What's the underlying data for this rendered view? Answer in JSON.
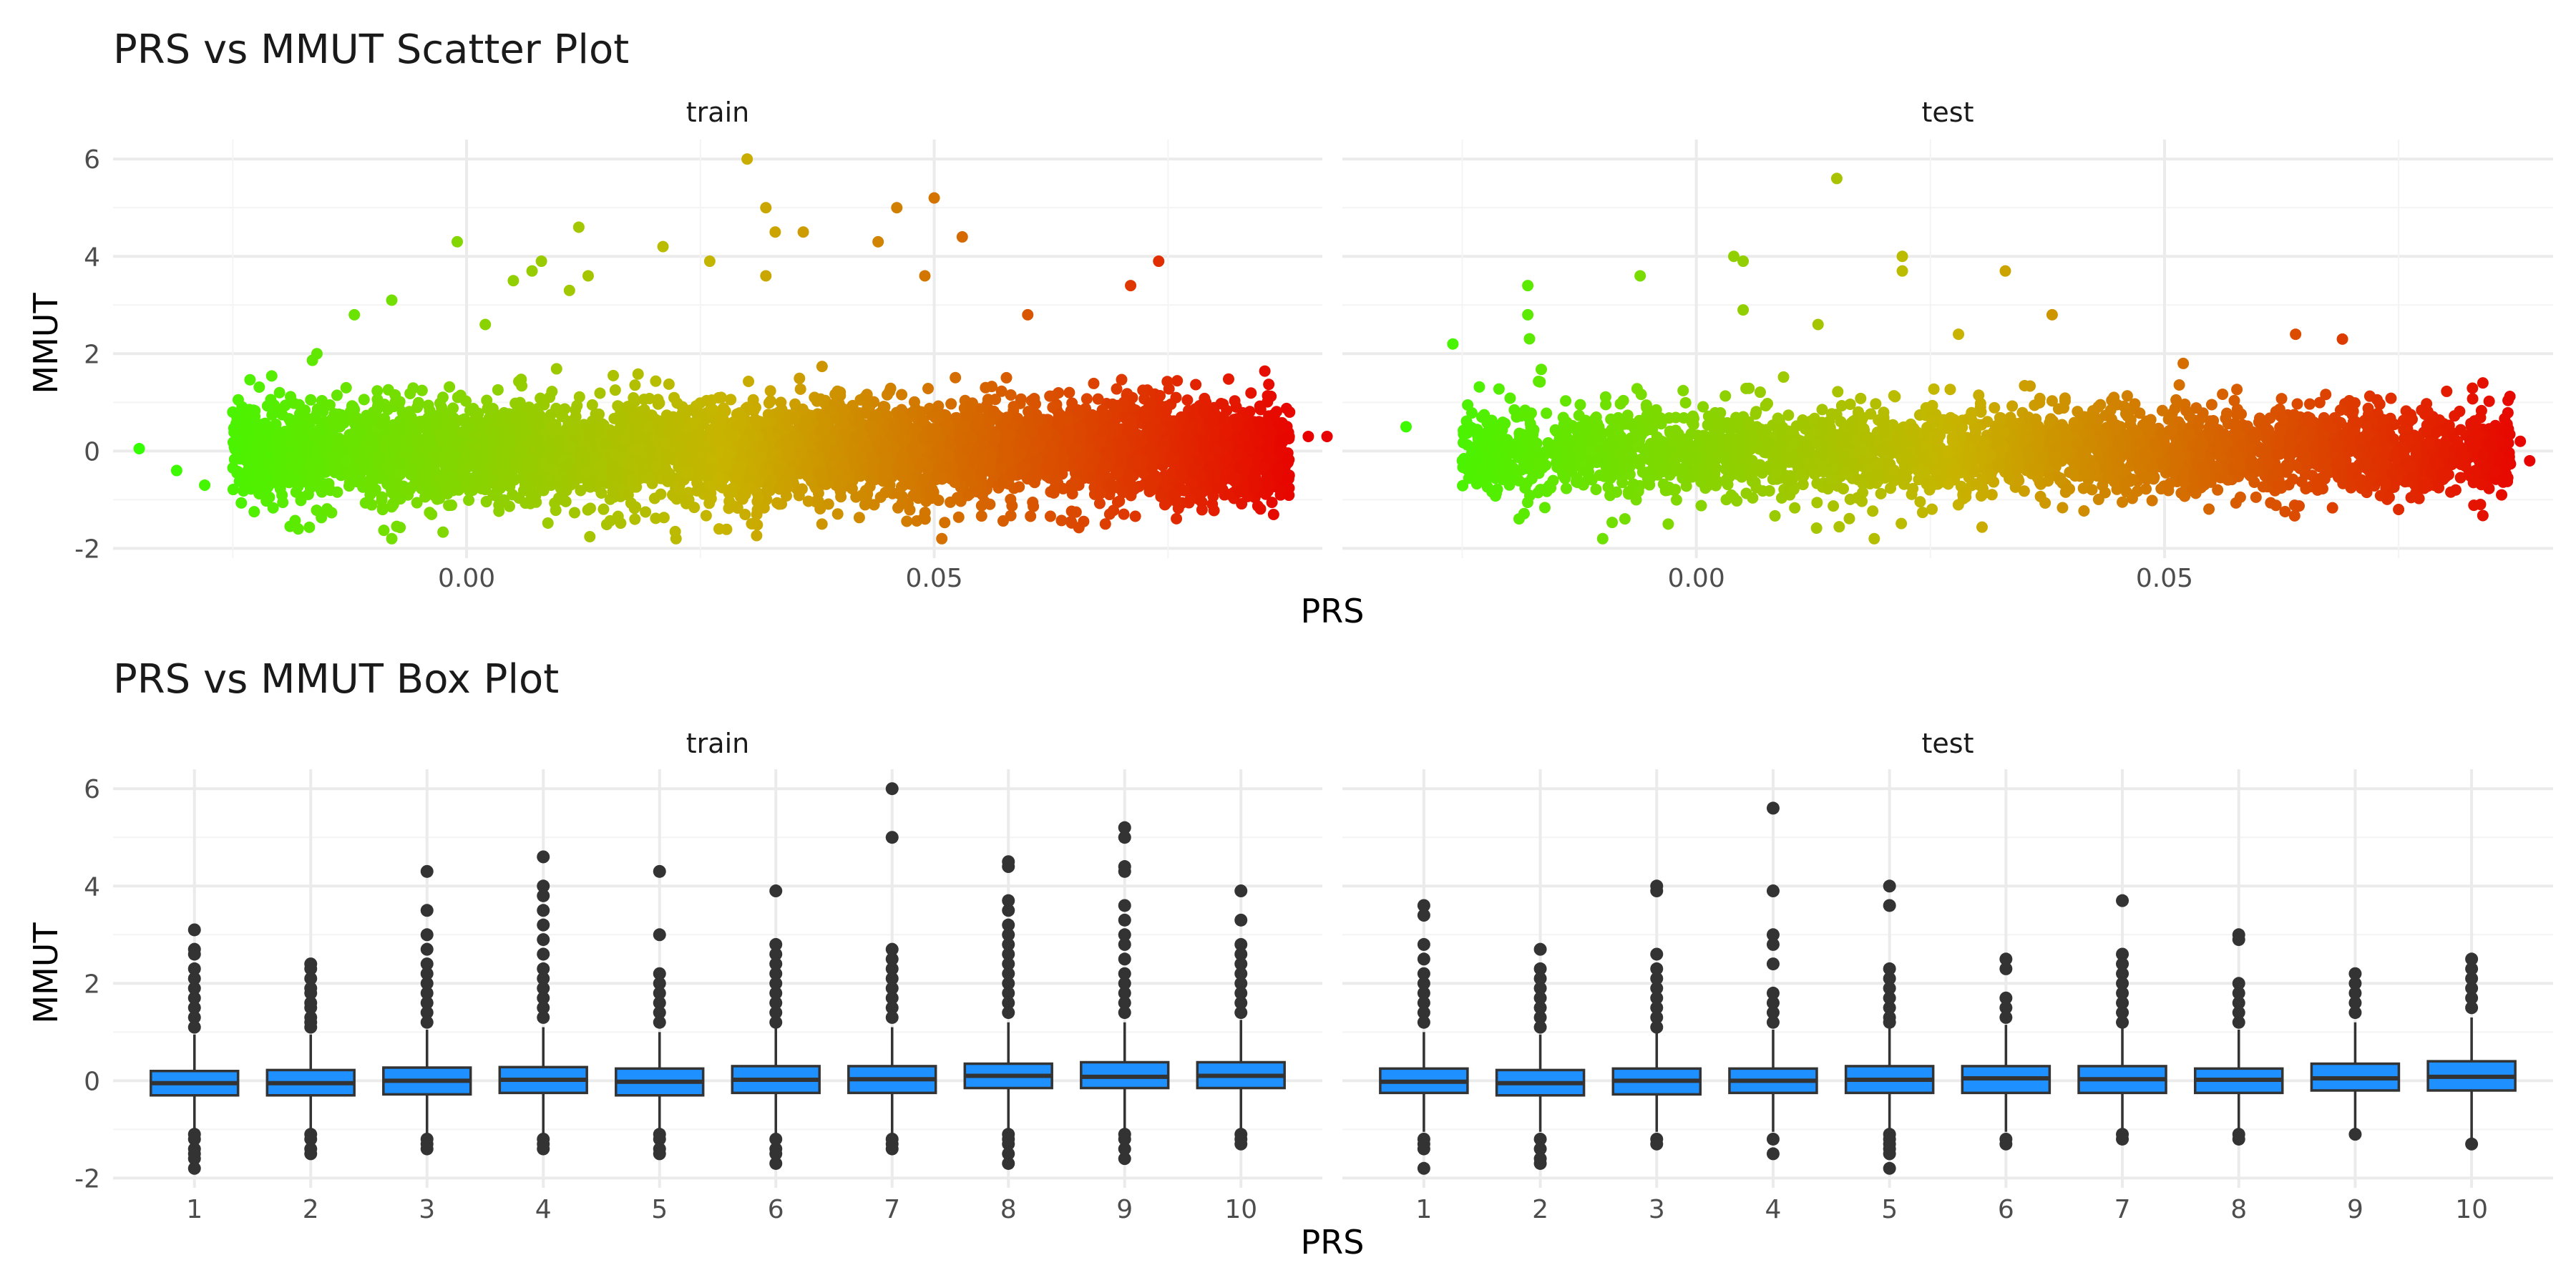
{
  "chart_data": [
    {
      "type": "scatter",
      "title": "PRS vs MMUT Scatter Plot",
      "xlabel": "PRS",
      "ylabel": "MMUT",
      "xlim": [
        -0.0378,
        0.0915
      ],
      "ylim": [
        -2.2,
        6.4
      ],
      "x_ticks": [
        0.0,
        0.05
      ],
      "x_tick_labels": [
        "0.00",
        "0.05"
      ],
      "y_ticks": [
        -2,
        0,
        2,
        4,
        6
      ],
      "y_tick_labels": [
        "-2",
        "0",
        "2",
        "4",
        "6"
      ],
      "color_scale": {
        "low": "#33ff00",
        "mid": "#c8b400",
        "high": "#e80000",
        "note_range": [
          -0.035,
          0.09
        ]
      },
      "grid": true,
      "legend": "none",
      "panels": [
        {
          "name": "train",
          "bulk": {
            "x_range": [
              -0.025,
              0.088
            ],
            "y_sd": 0.5
          },
          "points": [
            {
              "x": -0.035,
              "y": 0.05
            },
            {
              "x": -0.031,
              "y": -0.4
            },
            {
              "x": -0.028,
              "y": -0.7
            },
            {
              "x": -0.025,
              "y": 0.8
            },
            {
              "x": -0.02,
              "y": 1.2
            },
            {
              "x": -0.018,
              "y": -1.6
            },
            {
              "x": -0.016,
              "y": 2.0
            },
            {
              "x": -0.012,
              "y": 2.8
            },
            {
              "x": -0.008,
              "y": -1.8
            },
            {
              "x": -0.008,
              "y": 3.1
            },
            {
              "x": -0.001,
              "y": 4.3
            },
            {
              "x": 0.002,
              "y": 2.6
            },
            {
              "x": 0.005,
              "y": 3.5
            },
            {
              "x": 0.007,
              "y": 3.7
            },
            {
              "x": 0.008,
              "y": 3.9
            },
            {
              "x": 0.011,
              "y": 3.3
            },
            {
              "x": 0.012,
              "y": 4.6
            },
            {
              "x": 0.013,
              "y": 3.6
            },
            {
              "x": 0.018,
              "y": -1.4
            },
            {
              "x": 0.021,
              "y": 4.2
            },
            {
              "x": 0.026,
              "y": 3.9
            },
            {
              "x": 0.027,
              "y": -1.6
            },
            {
              "x": 0.03,
              "y": 6.0
            },
            {
              "x": 0.032,
              "y": 5.0
            },
            {
              "x": 0.032,
              "y": 3.6
            },
            {
              "x": 0.033,
              "y": 4.5
            },
            {
              "x": 0.036,
              "y": 4.5
            },
            {
              "x": 0.038,
              "y": -1.5
            },
            {
              "x": 0.044,
              "y": 4.3
            },
            {
              "x": 0.046,
              "y": 5.0
            },
            {
              "x": 0.05,
              "y": 5.2
            },
            {
              "x": 0.049,
              "y": 3.6
            },
            {
              "x": 0.053,
              "y": 4.4
            },
            {
              "x": 0.06,
              "y": 2.8
            },
            {
              "x": 0.071,
              "y": 3.4
            },
            {
              "x": 0.074,
              "y": 3.9
            },
            {
              "x": 0.087,
              "y": -0.8
            },
            {
              "x": 0.088,
              "y": 0.8
            },
            {
              "x": 0.09,
              "y": 0.3
            },
            {
              "x": 0.092,
              "y": 0.3
            },
            {
              "x": 0.086,
              "y": 0.4
            }
          ]
        },
        {
          "name": "test",
          "bulk": {
            "x_range": [
              -0.025,
              0.087
            ],
            "y_sd": 0.45
          },
          "points": [
            {
              "x": -0.031,
              "y": 0.5
            },
            {
              "x": -0.026,
              "y": 2.2
            },
            {
              "x": -0.018,
              "y": 3.4
            },
            {
              "x": -0.018,
              "y": 2.8
            },
            {
              "x": -0.006,
              "y": 3.6
            },
            {
              "x": -0.003,
              "y": -1.5
            },
            {
              "x": -0.01,
              "y": -1.8
            },
            {
              "x": 0.004,
              "y": 4.0
            },
            {
              "x": 0.005,
              "y": 3.9
            },
            {
              "x": 0.005,
              "y": 2.9
            },
            {
              "x": 0.013,
              "y": 2.6
            },
            {
              "x": 0.015,
              "y": 5.6
            },
            {
              "x": 0.019,
              "y": -1.8
            },
            {
              "x": 0.022,
              "y": 4.0
            },
            {
              "x": 0.022,
              "y": 3.7
            },
            {
              "x": 0.028,
              "y": 2.4
            },
            {
              "x": 0.033,
              "y": 3.7
            },
            {
              "x": 0.038,
              "y": 2.8
            },
            {
              "x": 0.052,
              "y": 1.8
            },
            {
              "x": 0.064,
              "y": 2.4
            },
            {
              "x": 0.069,
              "y": 2.3
            },
            {
              "x": 0.075,
              "y": -1.2
            },
            {
              "x": 0.08,
              "y": -0.5
            },
            {
              "x": 0.084,
              "y": 1.4
            },
            {
              "x": 0.086,
              "y": -0.9
            },
            {
              "x": 0.088,
              "y": 0.2
            },
            {
              "x": 0.089,
              "y": -0.2
            }
          ]
        }
      ]
    },
    {
      "type": "box",
      "title": "PRS vs MMUT Box Plot",
      "xlabel": "PRS",
      "ylabel": "MMUT",
      "categories": [
        "1",
        "2",
        "3",
        "4",
        "5",
        "6",
        "7",
        "8",
        "9",
        "10"
      ],
      "ylim": [
        -2.2,
        6.4
      ],
      "y_ticks": [
        -2,
        0,
        2,
        4,
        6
      ],
      "y_tick_labels": [
        "-2",
        "0",
        "2",
        "4",
        "6"
      ],
      "box_color": "#1e90ff",
      "grid": true,
      "legend": "none",
      "panels": [
        {
          "name": "train",
          "boxes": [
            {
              "q1": -0.3,
              "median": -0.05,
              "q3": 0.2,
              "whisker_low": -1.05,
              "whisker_high": 0.95,
              "outliers_high": [
                3.1,
                2.7,
                2.6,
                2.3,
                2.1,
                1.9,
                1.7,
                1.5,
                1.3,
                1.1
              ],
              "outliers_low": [
                -1.1,
                -1.2,
                -1.4,
                -1.5,
                -1.6,
                -1.8
              ]
            },
            {
              "q1": -0.3,
              "median": -0.05,
              "q3": 0.22,
              "whisker_low": -1.05,
              "whisker_high": 0.95,
              "outliers_high": [
                2.4,
                2.3,
                2.1,
                1.9,
                1.8,
                1.6,
                1.5,
                1.3,
                1.2,
                1.1
              ],
              "outliers_low": [
                -1.1,
                -1.2,
                -1.4,
                -1.5
              ]
            },
            {
              "q1": -0.28,
              "median": 0.0,
              "q3": 0.27,
              "whisker_low": -1.1,
              "whisker_high": 1.05,
              "outliers_high": [
                4.3,
                3.5,
                3.0,
                2.7,
                2.4,
                2.2,
                2.0,
                1.8,
                1.6,
                1.4,
                1.2
              ],
              "outliers_low": [
                -1.2,
                -1.3,
                -1.4
              ]
            },
            {
              "q1": -0.25,
              "median": 0.02,
              "q3": 0.28,
              "whisker_low": -1.1,
              "whisker_high": 1.1,
              "outliers_high": [
                4.6,
                4.0,
                3.8,
                3.5,
                3.2,
                2.9,
                2.6,
                2.3,
                2.1,
                1.9,
                1.7,
                1.5,
                1.3
              ],
              "outliers_low": [
                -1.2,
                -1.3,
                -1.4
              ]
            },
            {
              "q1": -0.3,
              "median": -0.02,
              "q3": 0.25,
              "whisker_low": -1.05,
              "whisker_high": 1.0,
              "outliers_high": [
                4.3,
                3.0,
                2.2,
                2.0,
                1.8,
                1.6,
                1.4,
                1.2
              ],
              "outliers_low": [
                -1.1,
                -1.2,
                -1.4,
                -1.5
              ]
            },
            {
              "q1": -0.25,
              "median": 0.02,
              "q3": 0.3,
              "whisker_low": -1.1,
              "whisker_high": 1.1,
              "outliers_high": [
                3.9,
                2.8,
                2.6,
                2.4,
                2.2,
                2.0,
                1.8,
                1.6,
                1.4,
                1.2
              ],
              "outliers_low": [
                -1.2,
                -1.4,
                -1.5,
                -1.7
              ]
            },
            {
              "q1": -0.25,
              "median": 0.03,
              "q3": 0.3,
              "whisker_low": -1.1,
              "whisker_high": 1.1,
              "outliers_high": [
                6.0,
                5.0,
                2.7,
                2.5,
                2.3,
                2.1,
                1.9,
                1.7,
                1.5,
                1.3
              ],
              "outliers_low": [
                -1.2,
                -1.3,
                -1.4
              ]
            },
            {
              "q1": -0.15,
              "median": 0.1,
              "q3": 0.35,
              "whisker_low": -1.0,
              "whisker_high": 1.2,
              "outliers_high": [
                4.5,
                4.4,
                3.7,
                3.5,
                3.2,
                3.0,
                2.8,
                2.6,
                2.4,
                2.2,
                2.0,
                1.8,
                1.6,
                1.4
              ],
              "outliers_low": [
                -1.1,
                -1.2,
                -1.3,
                -1.5,
                -1.7
              ]
            },
            {
              "q1": -0.15,
              "median": 0.08,
              "q3": 0.38,
              "whisker_low": -1.0,
              "whisker_high": 1.2,
              "outliers_high": [
                5.2,
                5.0,
                4.4,
                4.3,
                3.6,
                3.3,
                3.0,
                2.8,
                2.5,
                2.2,
                2.0,
                1.8,
                1.6,
                1.4
              ],
              "outliers_low": [
                -1.1,
                -1.2,
                -1.4,
                -1.6
              ]
            },
            {
              "q1": -0.15,
              "median": 0.1,
              "q3": 0.38,
              "whisker_low": -1.0,
              "whisker_high": 1.25,
              "outliers_high": [
                3.9,
                3.3,
                2.8,
                2.6,
                2.4,
                2.2,
                2.0,
                1.8,
                1.6,
                1.4
              ],
              "outliers_low": [
                -1.1,
                -1.2,
                -1.3
              ]
            }
          ]
        },
        {
          "name": "test",
          "boxes": [
            {
              "q1": -0.25,
              "median": -0.02,
              "q3": 0.25,
              "whisker_low": -1.05,
              "whisker_high": 1.0,
              "outliers_high": [
                3.6,
                3.4,
                2.8,
                2.5,
                2.2,
                2.0,
                1.8,
                1.6,
                1.4,
                1.2
              ],
              "outliers_low": [
                -1.2,
                -1.3,
                -1.4,
                -1.8
              ]
            },
            {
              "q1": -0.3,
              "median": -0.05,
              "q3": 0.22,
              "whisker_low": -1.05,
              "whisker_high": 0.95,
              "outliers_high": [
                2.7,
                2.3,
                2.1,
                1.9,
                1.7,
                1.5,
                1.3,
                1.1
              ],
              "outliers_low": [
                -1.2,
                -1.4,
                -1.6,
                -1.7
              ]
            },
            {
              "q1": -0.28,
              "median": 0.0,
              "q3": 0.25,
              "whisker_low": -1.05,
              "whisker_high": 1.0,
              "outliers_high": [
                4.0,
                3.9,
                2.6,
                2.3,
                2.1,
                1.9,
                1.7,
                1.5,
                1.3,
                1.1
              ],
              "outliers_low": [
                -1.2,
                -1.3
              ]
            },
            {
              "q1": -0.25,
              "median": 0.0,
              "q3": 0.25,
              "whisker_low": -1.05,
              "whisker_high": 1.05,
              "outliers_high": [
                5.6,
                3.9,
                3.0,
                2.8,
                2.4,
                1.8,
                1.6,
                1.4,
                1.2
              ],
              "outliers_low": [
                -1.2,
                -1.5
              ]
            },
            {
              "q1": -0.25,
              "median": 0.02,
              "q3": 0.3,
              "whisker_low": -1.05,
              "whisker_high": 1.1,
              "outliers_high": [
                4.0,
                3.6,
                2.3,
                2.1,
                1.9,
                1.7,
                1.5,
                1.3,
                1.2
              ],
              "outliers_low": [
                -1.1,
                -1.2,
                -1.3,
                -1.4,
                -1.5,
                -1.8
              ]
            },
            {
              "q1": -0.25,
              "median": 0.05,
              "q3": 0.3,
              "whisker_low": -1.05,
              "whisker_high": 1.15,
              "outliers_high": [
                2.5,
                2.3,
                1.7,
                1.5,
                1.3
              ],
              "outliers_low": [
                -1.2,
                -1.3
              ]
            },
            {
              "q1": -0.25,
              "median": 0.03,
              "q3": 0.3,
              "whisker_low": -1.05,
              "whisker_high": 1.1,
              "outliers_high": [
                3.7,
                2.6,
                2.4,
                2.2,
                2.0,
                1.8,
                1.6,
                1.4,
                1.2
              ],
              "outliers_low": [
                -1.1,
                -1.2
              ]
            },
            {
              "q1": -0.25,
              "median": 0.02,
              "q3": 0.25,
              "whisker_low": -1.05,
              "whisker_high": 1.05,
              "outliers_high": [
                3.0,
                2.9,
                2.0,
                1.8,
                1.6,
                1.4,
                1.2
              ],
              "outliers_low": [
                -1.1,
                -1.2
              ]
            },
            {
              "q1": -0.2,
              "median": 0.05,
              "q3": 0.35,
              "whisker_low": -1.0,
              "whisker_high": 1.2,
              "outliers_high": [
                2.2,
                2.0,
                1.8,
                1.6,
                1.4
              ],
              "outliers_low": [
                -1.1
              ]
            },
            {
              "q1": -0.2,
              "median": 0.08,
              "q3": 0.4,
              "whisker_low": -1.2,
              "whisker_high": 1.3,
              "outliers_high": [
                2.5,
                2.3,
                2.1,
                1.9,
                1.7,
                1.5
              ],
              "outliers_low": [
                -1.3
              ]
            }
          ]
        }
      ]
    }
  ]
}
